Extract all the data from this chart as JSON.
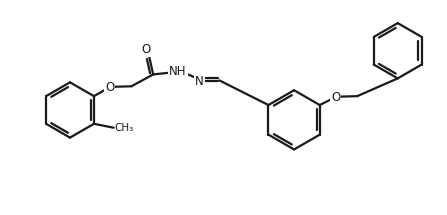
{
  "bg_color": "#ffffff",
  "line_color": "#1a1a1a",
  "line_width": 1.6,
  "figsize": [
    4.47,
    2.15
  ],
  "dpi": 100,
  "xlim": [
    0,
    447
  ],
  "ylim": [
    0,
    215
  ]
}
